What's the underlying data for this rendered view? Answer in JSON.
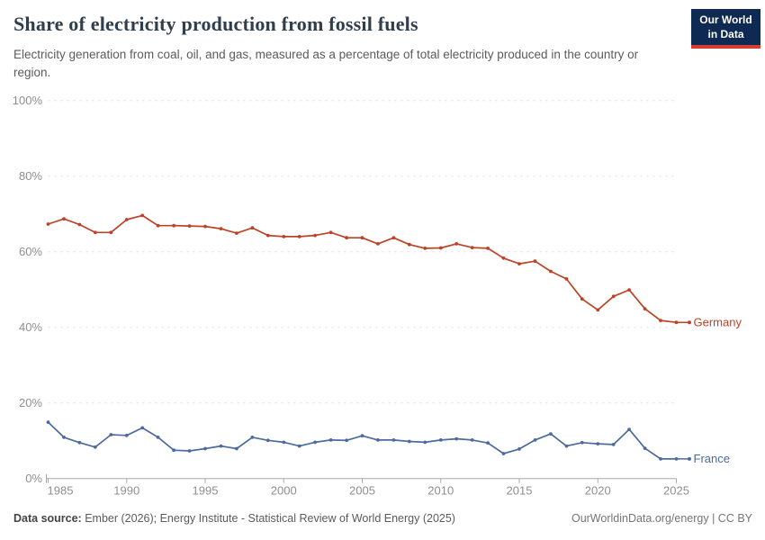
{
  "chart_data": {
    "type": "line",
    "title": "Share of electricity production from fossil fuels",
    "subtitle": "Electricity generation from coal, oil, and gas, measured as a percentage of total electricity produced in the country or region.",
    "x": [
      1985,
      1986,
      1987,
      1988,
      1989,
      1990,
      1991,
      1992,
      1993,
      1994,
      1995,
      1996,
      1997,
      1998,
      1999,
      2000,
      2001,
      2002,
      2003,
      2004,
      2005,
      2006,
      2007,
      2008,
      2009,
      2010,
      2011,
      2012,
      2013,
      2014,
      2015,
      2016,
      2017,
      2018,
      2019,
      2020,
      2021,
      2022,
      2023,
      2024,
      2025
    ],
    "series": [
      {
        "name": "Germany",
        "color": "#bc4327",
        "values": [
          67.3,
          68.7,
          67.2,
          65.1,
          65.1,
          68.5,
          69.6,
          66.9,
          66.9,
          66.8,
          66.7,
          66.1,
          64.9,
          66.3,
          64.3,
          64.0,
          64.0,
          64.3,
          65.1,
          63.7,
          63.7,
          62.1,
          63.7,
          61.9,
          60.9,
          61.0,
          62.1,
          61.1,
          60.9,
          58.3,
          56.8,
          57.5,
          54.8,
          52.8,
          47.5,
          44.6,
          48.2,
          49.9,
          44.9,
          41.8,
          41.3
        ]
      },
      {
        "name": "France",
        "color": "#4d6b9e",
        "values": [
          14.9,
          10.9,
          9.5,
          8.3,
          11.6,
          11.4,
          13.4,
          10.9,
          7.5,
          7.3,
          7.9,
          8.6,
          7.9,
          10.9,
          10.1,
          9.6,
          8.6,
          9.6,
          10.2,
          10.1,
          11.3,
          10.2,
          10.2,
          9.8,
          9.6,
          10.2,
          10.5,
          10.2,
          9.4,
          6.6,
          7.8,
          10.2,
          11.8,
          8.6,
          9.5,
          9.2,
          9.0,
          13.0,
          8.0,
          5.2,
          5.2
        ]
      }
    ],
    "ylim": [
      0,
      100
    ],
    "yticks": [
      {
        "value": 0,
        "label": "0%"
      },
      {
        "value": 20,
        "label": "20%"
      },
      {
        "value": 40,
        "label": "40%"
      },
      {
        "value": 60,
        "label": "60%"
      },
      {
        "value": 80,
        "label": "80%"
      },
      {
        "value": 100,
        "label": "100%"
      }
    ],
    "xticks": [
      {
        "value": 1985,
        "label": "1985"
      },
      {
        "value": 1990,
        "label": "1990"
      },
      {
        "value": 1995,
        "label": "1995"
      },
      {
        "value": 2000,
        "label": "2000"
      },
      {
        "value": 2005,
        "label": "2005"
      },
      {
        "value": 2010,
        "label": "2010"
      },
      {
        "value": 2015,
        "label": "2015"
      },
      {
        "value": 2020,
        "label": "2020"
      },
      {
        "value": 2025,
        "label": "2025"
      }
    ],
    "grid": "horizontal-dashed",
    "legend": "line-end-labels"
  },
  "branding": {
    "logo_line1": "Our World",
    "logo_line2": "in Data"
  },
  "footer": {
    "source_label": "Data source:",
    "source_text": " Ember (2026); Energy Institute - Statistical Review of World Energy (2025)",
    "link": "OurWorldinData.org/energy",
    "separator": " | ",
    "license": "CC BY"
  },
  "colors": {
    "title": "#2f3e4c",
    "subtitle": "#5b5b5b",
    "axis_text": "#8f8f8f",
    "gridline": "#dedede",
    "axis_line": "#a8a8a8",
    "logo_background": "#0e2a52",
    "logo_accent": "#d53c32",
    "germany": "#bc4327",
    "france": "#4d6b9e"
  }
}
